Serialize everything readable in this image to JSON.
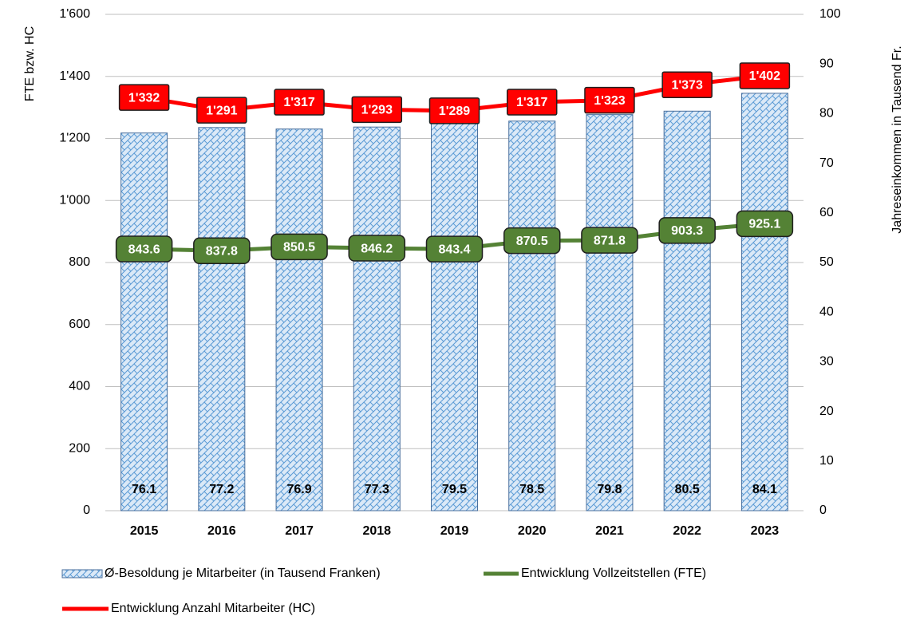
{
  "chart_data": {
    "type": "combo",
    "categories": [
      "2015",
      "2016",
      "2017",
      "2018",
      "2019",
      "2020",
      "2021",
      "2022",
      "2023"
    ],
    "y_label": "FTE  bzw. HC",
    "y2_label": "Jahreseinkommen in Tausend Fr.",
    "ylim": [
      0,
      1600
    ],
    "yticks": [
      0,
      200,
      400,
      600,
      800,
      {
        "value": 1000,
        "label": "1'000"
      },
      {
        "value": 1200,
        "label": "1'200"
      },
      {
        "value": 1400,
        "label": "1'400"
      },
      {
        "value": 1600,
        "label": "1'600"
      }
    ],
    "y2lim": [
      0,
      100
    ],
    "y2ticks": [
      0,
      10,
      20,
      30,
      40,
      50,
      60,
      70,
      80,
      90,
      100
    ],
    "grid": true,
    "legend": "bottom",
    "series": [
      {
        "name": "Ø-Besoldung je Mitarbeiter (in Tausend Franken)",
        "type": "bar",
        "axis": "y2",
        "color": "#bdd7ee",
        "values": [
          76.1,
          77.2,
          76.9,
          77.3,
          79.5,
          78.5,
          79.8,
          80.5,
          84.1
        ]
      },
      {
        "name": "Entwicklung Vollzeitstellen (FTE)",
        "type": "line",
        "color": "#548235",
        "values": [
          843.6,
          837.8,
          850.5,
          846.2,
          843.4,
          870.5,
          871.8,
          903.3,
          925.1
        ]
      },
      {
        "name": "Entwicklung Anzahl Mitarbeiter (HC)",
        "type": "line",
        "color": "#ff0000",
        "values": [
          1332,
          1291,
          1317,
          1293,
          1289,
          1317,
          1323,
          1373,
          1402
        ],
        "value_labels": [
          "1'332",
          "1'291",
          "1'317",
          "1'293",
          "1'289",
          "1'317",
          "1'323",
          "1'373",
          "1'402"
        ]
      }
    ]
  }
}
